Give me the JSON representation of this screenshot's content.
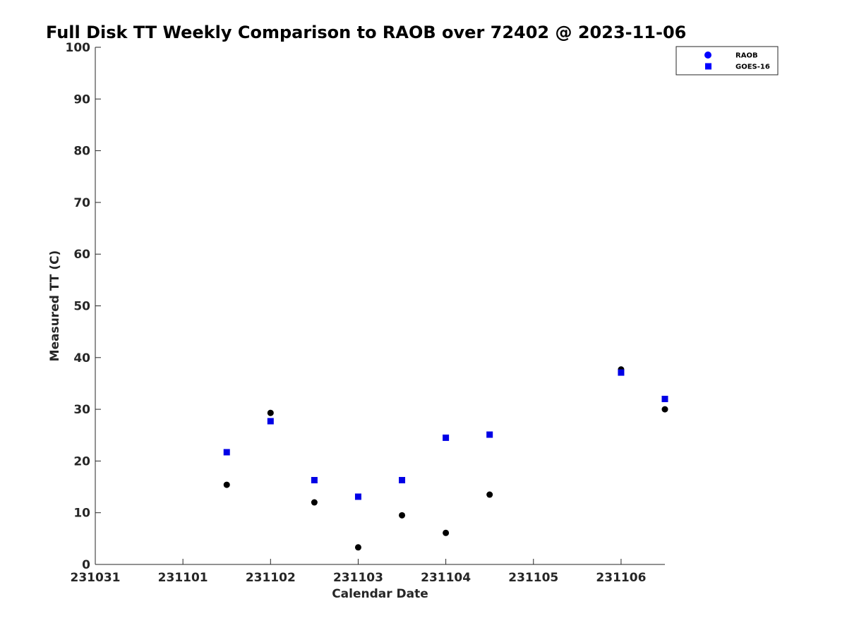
{
  "chart_data": {
    "type": "scatter",
    "title": "Full Disk TT Weekly Comparison to RAOB over 72402 @ 2023-11-06",
    "xlabel": "Calendar Date",
    "ylabel": "Measured TT (C)",
    "x_ticks": [
      "231031",
      "231101",
      "231102",
      "231103",
      "231104",
      "231105",
      "231106"
    ],
    "xlim": [
      0,
      6.5
    ],
    "ylim": [
      0,
      100
    ],
    "y_ticks": [
      0,
      10,
      20,
      30,
      40,
      50,
      60,
      70,
      80,
      90,
      100
    ],
    "grid": false,
    "legend_position": "top-right",
    "series": [
      {
        "name": "RAOB",
        "marker": "circle",
        "color": "#000000",
        "legend_color": "#0000ff",
        "x": [
          1.5,
          2.0,
          2.5,
          3.0,
          3.5,
          4.0,
          4.5,
          6.0,
          6.5
        ],
        "y": [
          15.4,
          29.3,
          12.0,
          3.3,
          9.5,
          6.1,
          13.5,
          37.7,
          30.0
        ]
      },
      {
        "name": "GOES-16",
        "marker": "square",
        "color": "#0000e6",
        "legend_color": "#0000ff",
        "x": [
          1.5,
          2.0,
          2.5,
          3.0,
          3.5,
          4.0,
          4.5,
          6.0,
          6.5
        ],
        "y": [
          21.7,
          27.7,
          16.3,
          13.1,
          16.3,
          24.5,
          25.1,
          37.1,
          32.0
        ]
      }
    ]
  }
}
